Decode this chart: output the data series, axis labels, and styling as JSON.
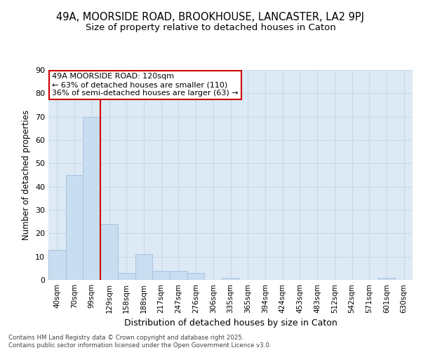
{
  "title_line1": "49A, MOORSIDE ROAD, BROOKHOUSE, LANCASTER, LA2 9PJ",
  "title_line2": "Size of property relative to detached houses in Caton",
  "xlabel": "Distribution of detached houses by size in Caton",
  "ylabel": "Number of detached properties",
  "bar_labels": [
    "40sqm",
    "70sqm",
    "99sqm",
    "129sqm",
    "158sqm",
    "188sqm",
    "217sqm",
    "247sqm",
    "276sqm",
    "306sqm",
    "335sqm",
    "365sqm",
    "394sqm",
    "424sqm",
    "453sqm",
    "483sqm",
    "512sqm",
    "542sqm",
    "571sqm",
    "601sqm",
    "630sqm"
  ],
  "bar_values": [
    13,
    45,
    70,
    24,
    3,
    11,
    4,
    4,
    3,
    0,
    1,
    0,
    0,
    0,
    0,
    0,
    0,
    0,
    0,
    1,
    0
  ],
  "bar_color": "#c8ddf0",
  "bar_edge_color": "#a8c4e0",
  "vline_color": "#cc0000",
  "annotation_text": "49A MOORSIDE ROAD: 120sqm\n← 63% of detached houses are smaller (110)\n36% of semi-detached houses are larger (63) →",
  "annotation_box_color": "#ffffff",
  "annotation_box_edge_color": "#cc0000",
  "grid_color": "#c8d8e8",
  "plot_bg_color": "#ddeaf5",
  "fig_bg_color": "#ffffff",
  "ylim": [
    0,
    90
  ],
  "yticks": [
    0,
    10,
    20,
    30,
    40,
    50,
    60,
    70,
    80,
    90
  ],
  "footer_text": "Contains HM Land Registry data © Crown copyright and database right 2025.\nContains public sector information licensed under the Open Government Licence v3.0.",
  "title_fontsize": 10.5,
  "subtitle_fontsize": 9.5,
  "ylabel_fontsize": 8.5,
  "xlabel_fontsize": 9,
  "tick_fontsize": 7.5
}
